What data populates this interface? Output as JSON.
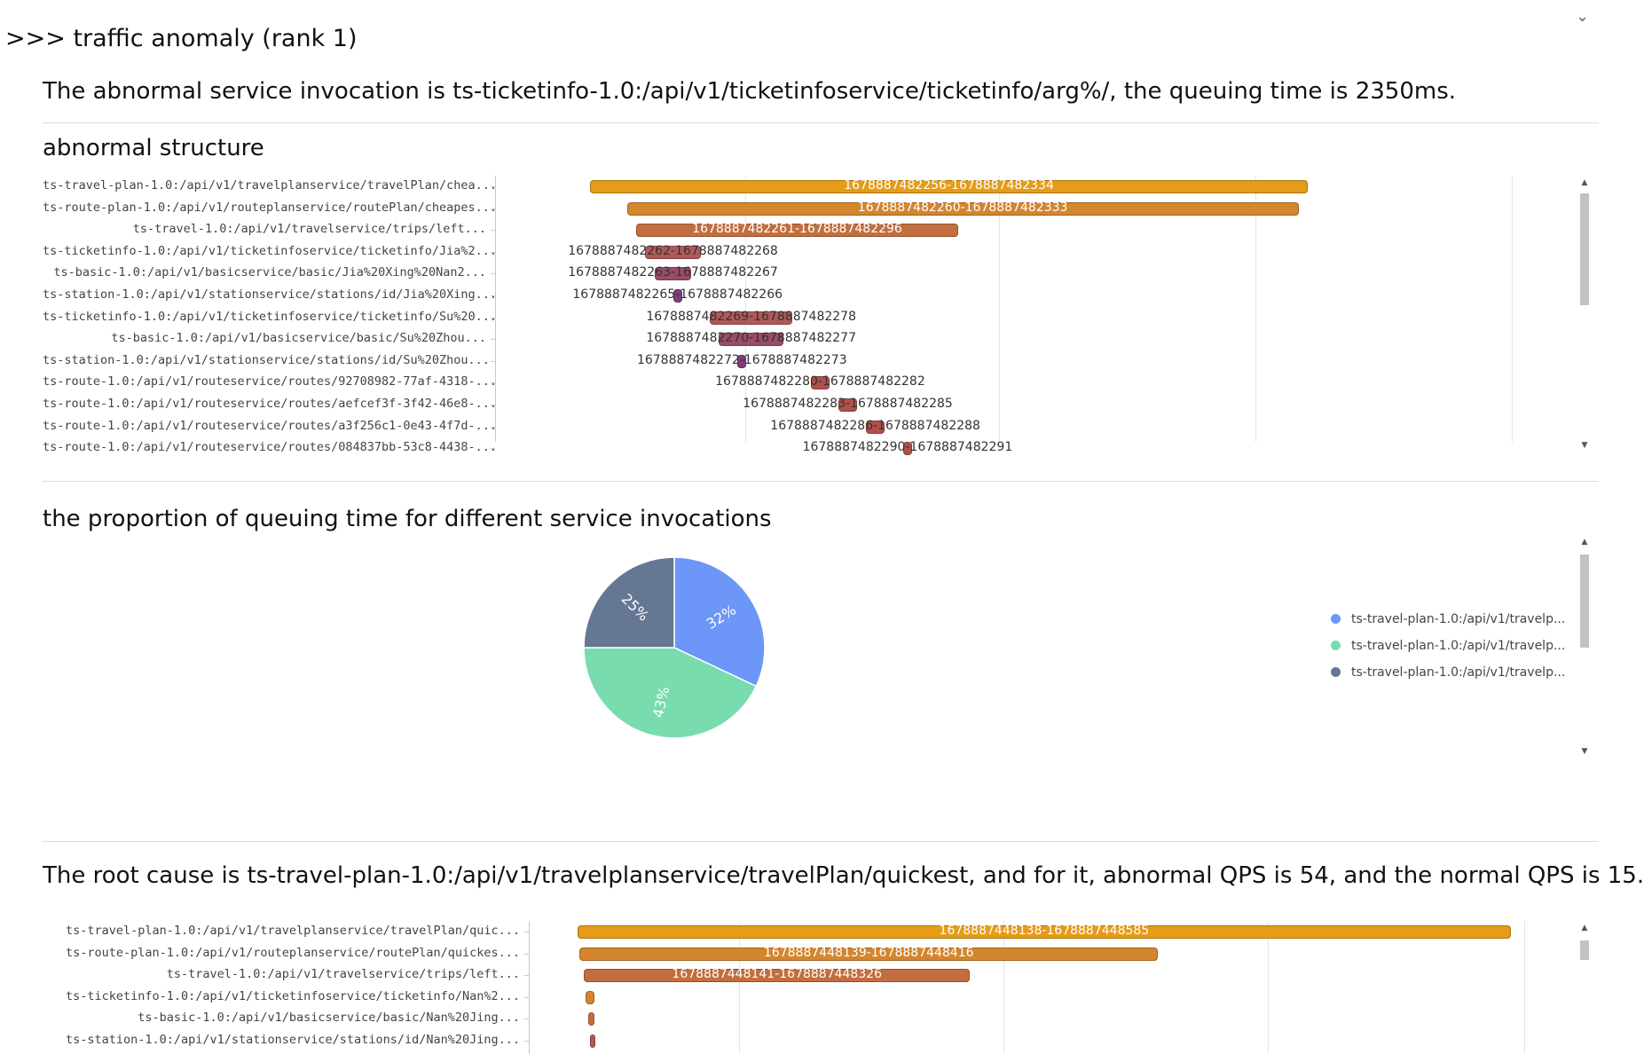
{
  "header": {
    "title": ">>> traffic anomaly (rank 1)"
  },
  "anomaly_sentence": "The abnormal service invocation is ts-ticketinfo-1.0:/api/v1/ticketinfoservice/ticketinfo/arg%/, the queuing time is 2350ms.",
  "structure_title": "abnormal structure",
  "structure_gantt": {
    "rows": [
      {
        "label": "ts-travel-plan-1.0:/api/v1/travelplanservice/travelPlan/chea...",
        "start": 1678887482256,
        "end": 1678887482334,
        "text": "1678887482256-1678887482334",
        "color": "#E59C18",
        "inside": true
      },
      {
        "label": "ts-route-plan-1.0:/api/v1/routeplanservice/routePlan/cheapes...",
        "start": 1678887482260,
        "end": 1678887482333,
        "text": "1678887482260-1678887482333",
        "color": "#D4862E",
        "inside": true
      },
      {
        "label": "ts-travel-1.0:/api/v1/travelservice/trips/left...",
        "start": 1678887482261,
        "end": 1678887482296,
        "text": "1678887482261-1678887482296",
        "color": "#C36E3E",
        "inside": true
      },
      {
        "label": "ts-ticketinfo-1.0:/api/v1/ticketinfoservice/ticketinfo/Jia%2...",
        "start": 1678887482262,
        "end": 1678887482268,
        "text": "1678887482262-1678887482268",
        "color": "#B05A58",
        "inside": false
      },
      {
        "label": "ts-basic-1.0:/api/v1/basicservice/basic/Jia%20Xing%20Nan2...",
        "start": 1678887482263,
        "end": 1678887482267,
        "text": "1678887482263-1678887482267",
        "color": "#9A4C6A",
        "inside": false
      },
      {
        "label": "ts-station-1.0:/api/v1/stationservice/stations/id/Jia%20Xing...",
        "start": 1678887482265,
        "end": 1678887482266,
        "text": "1678887482265-1678887482266",
        "color": "#7E3C7A",
        "inside": false
      },
      {
        "label": "ts-ticketinfo-1.0:/api/v1/ticketinfoservice/ticketinfo/Su%20...",
        "start": 1678887482269,
        "end": 1678887482278,
        "text": "1678887482269-1678887482278",
        "color": "#B05A58",
        "inside": false
      },
      {
        "label": "ts-basic-1.0:/api/v1/basicservice/basic/Su%20Zhou...",
        "start": 1678887482270,
        "end": 1678887482277,
        "text": "1678887482270-1678887482277",
        "color": "#9A4C6A",
        "inside": false
      },
      {
        "label": "ts-station-1.0:/api/v1/stationservice/stations/id/Su%20Zhou...",
        "start": 1678887482272,
        "end": 1678887482273,
        "text": "1678887482272-1678887482273",
        "color": "#7E3C7A",
        "inside": false
      },
      {
        "label": "ts-route-1.0:/api/v1/routeservice/routes/92708982-77af-4318-...",
        "start": 1678887482280,
        "end": 1678887482282,
        "text": "1678887482280-1678887482282",
        "color": "#B0504A",
        "inside": false
      },
      {
        "label": "ts-route-1.0:/api/v1/routeservice/routes/aefcef3f-3f42-46e8-...",
        "start": 1678887482283,
        "end": 1678887482285,
        "text": "1678887482283-1678887482285",
        "color": "#B0504A",
        "inside": false
      },
      {
        "label": "ts-route-1.0:/api/v1/routeservice/routes/a3f256c1-0e43-4f7d-...",
        "start": 1678887482286,
        "end": 1678887482288,
        "text": "1678887482286-1678887482288",
        "color": "#B0504A",
        "inside": false
      },
      {
        "label": "ts-route-1.0:/api/v1/routeservice/routes/084837bb-53c8-4438-...",
        "start": 1678887482290,
        "end": 1678887482291,
        "text": "1678887482290-1678887482291",
        "color": "#B0504A",
        "inside": false
      }
    ],
    "range": [
      1678887482250,
      1678887482345
    ]
  },
  "proportion_title": "the proportion of queuing time for different service invocations",
  "chart_data": {
    "type": "pie",
    "title": "the proportion of queuing time for different service invocations",
    "slices": [
      {
        "name": "ts-travel-plan-1.0:/api/v1/travelp...",
        "value": 32,
        "label": "32%",
        "color": "#6C96F7"
      },
      {
        "name": "ts-travel-plan-1.0:/api/v1/travelp...",
        "value": 43,
        "label": "43%",
        "color": "#79DCAE"
      },
      {
        "name": "ts-travel-plan-1.0:/api/v1/travelp...",
        "value": 25,
        "label": "25%",
        "color": "#667794"
      }
    ],
    "legend_position": "right"
  },
  "root_cause_sentence": "The root cause is ts-travel-plan-1.0:/api/v1/travelplanservice/travelPlan/quickest, and for it, abnormal QPS is 54, and the normal QPS is 15.",
  "root_gantt": {
    "rows": [
      {
        "label": "ts-travel-plan-1.0:/api/v1/travelplanservice/travelPlan/quic...",
        "start": 1678887448138,
        "end": 1678887448585,
        "text": "1678887448138-1678887448585",
        "color": "#E59C18",
        "inside": true
      },
      {
        "label": "ts-route-plan-1.0:/api/v1/routeplanservice/routePlan/quickes...",
        "start": 1678887448139,
        "end": 1678887448416,
        "text": "1678887448139-1678887448416",
        "color": "#D4862E",
        "inside": true
      },
      {
        "label": "ts-travel-1.0:/api/v1/travelservice/trips/left...",
        "start": 1678887448141,
        "end": 1678887448326,
        "text": "1678887448141-1678887448326",
        "color": "#C36E3E",
        "inside": true
      },
      {
        "label": "ts-ticketinfo-1.0:/api/v1/ticketinfoservice/ticketinfo/Nan%2...",
        "start": 1678887448142,
        "end": 1678887448146,
        "text": "",
        "color": "#D4862E",
        "inside": false
      },
      {
        "label": "ts-basic-1.0:/api/v1/basicservice/basic/Nan%20Jing...",
        "start": 1678887448143,
        "end": 1678887448146,
        "text": "",
        "color": "#C36E3E",
        "inside": false
      },
      {
        "label": "ts-station-1.0:/api/v1/stationservice/stations/id/Nan%20Jing...",
        "start": 1678887448144,
        "end": 1678887448145,
        "text": "",
        "color": "#B05A58",
        "inside": false
      }
    ],
    "range": [
      1678887448135,
      1678887448600
    ]
  }
}
